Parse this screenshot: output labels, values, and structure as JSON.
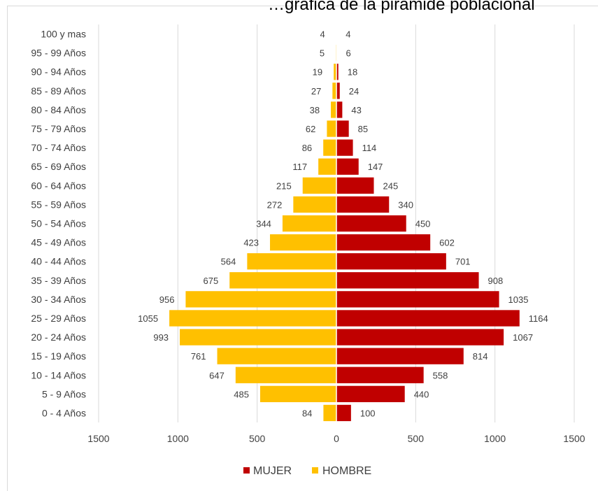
{
  "title_fragment": "…gráfica de la pirámide poblacional",
  "colors": {
    "mujer": "#C00000",
    "hombre": "#FFC000",
    "grid": "#d9d9d9",
    "text": "#404040"
  },
  "chart_data": {
    "type": "bar",
    "orientation": "horizontal",
    "title": "",
    "categories": [
      "0 - 4 Años",
      "5 - 9 Años",
      "10 - 14 Años",
      "15 - 19 Años",
      "20 - 24 Años",
      "25 - 29 Años",
      "30 - 34 Años",
      "35 - 39 Años",
      "40 - 44 Años",
      "45 - 49 Años",
      "50 - 54 Años",
      "55 - 59 Años",
      "60 - 64 Años",
      "65 - 69 Años",
      "70 - 74 Años",
      "75 - 79 Años",
      "80 - 84 Años",
      "85 - 89 Años",
      "90 - 94 Años",
      "95 - 99 Años",
      "100 y mas"
    ],
    "series": [
      {
        "name": "MUJER",
        "values": [
          100,
          440,
          558,
          814,
          1067,
          1164,
          1035,
          908,
          701,
          602,
          450,
          340,
          245,
          147,
          114,
          85,
          43,
          24,
          18,
          6,
          4
        ]
      },
      {
        "name": "HOMBRE",
        "values": [
          84,
          485,
          647,
          761,
          993,
          1055,
          956,
          675,
          564,
          423,
          344,
          272,
          215,
          117,
          86,
          62,
          38,
          27,
          19,
          5,
          4
        ]
      }
    ],
    "bar_extents": {
      "MUJER": [
        92,
        431,
        550,
        802,
        1055,
        1155,
        1026,
        898,
        692,
        592,
        440,
        332,
        236,
        140,
        104,
        78,
        37,
        21,
        12,
        2,
        1
      ],
      "HOMBRE": [
        82,
        481,
        636,
        752,
        988,
        1054,
        951,
        674,
        563,
        419,
        340,
        272,
        213,
        114,
        83,
        60,
        35,
        25,
        17,
        4,
        1
      ]
    },
    "xlim": [
      -1500,
      1500
    ],
    "xticks": [
      -1500,
      -1000,
      -500,
      0,
      500,
      1000,
      1500
    ],
    "xtick_labels": [
      "1500",
      "1000",
      "500",
      "0",
      "500",
      "1000",
      "1500"
    ],
    "grid": "vertical",
    "legend_position": "bottom"
  }
}
